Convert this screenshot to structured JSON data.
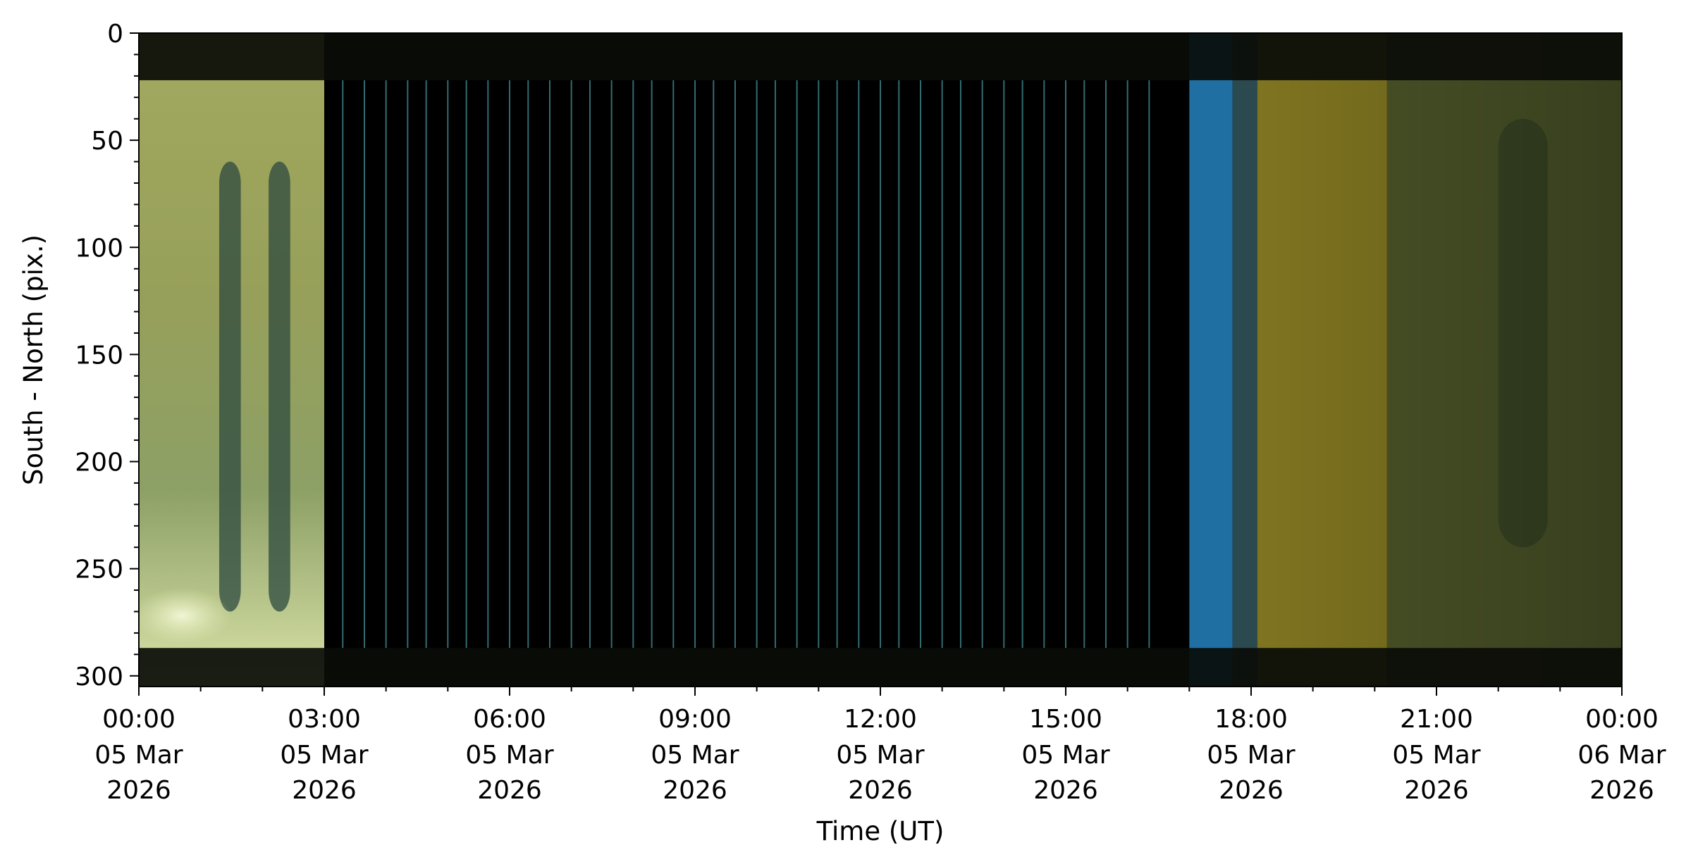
{
  "chart_data": {
    "type": "heatmap",
    "title": "",
    "xlabel": "Time (UT)",
    "ylabel": "South - North (pix.)",
    "y_inverted": true,
    "ylim": [
      305,
      0
    ],
    "y_major_ticks": [
      0,
      50,
      100,
      150,
      200,
      250,
      300
    ],
    "y_minor_step": 10,
    "x_range_hours": [
      0,
      24
    ],
    "x_minor_step_hours": 1,
    "x_ticks": [
      {
        "hours": 0,
        "time": "00:00",
        "date": "05 Mar",
        "year": "2026"
      },
      {
        "hours": 3,
        "time": "03:00",
        "date": "05 Mar",
        "year": "2026"
      },
      {
        "hours": 6,
        "time": "06:00",
        "date": "05 Mar",
        "year": "2026"
      },
      {
        "hours": 9,
        "time": "09:00",
        "date": "05 Mar",
        "year": "2026"
      },
      {
        "hours": 12,
        "time": "12:00",
        "date": "05 Mar",
        "year": "2026"
      },
      {
        "hours": 15,
        "time": "15:00",
        "date": "05 Mar",
        "year": "2026"
      },
      {
        "hours": 18,
        "time": "18:00",
        "date": "05 Mar",
        "year": "2026"
      },
      {
        "hours": 21,
        "time": "21:00",
        "date": "05 Mar",
        "year": "2026"
      },
      {
        "hours": 24,
        "time": "00:00",
        "date": "06 Mar",
        "year": "2026"
      }
    ],
    "segments": [
      {
        "start_hours": 0.0,
        "end_hours": 3.0,
        "color": "#a9b266"
      },
      {
        "start_hours": 3.0,
        "end_hours": 17.0,
        "color": "#000000"
      },
      {
        "start_hours": 17.0,
        "end_hours": 17.7,
        "color": "#1f6fa3"
      },
      {
        "start_hours": 17.7,
        "end_hours": 18.1,
        "color": "#2b4a50"
      },
      {
        "start_hours": 18.1,
        "end_hours": 20.2,
        "color": "#7f7420"
      },
      {
        "start_hours": 20.2,
        "end_hours": 24.0,
        "color": "#4b5428"
      }
    ],
    "dark_band_pix": [
      [
        0,
        22
      ],
      [
        287,
        305
      ]
    ],
    "line_hours": [
      3.3,
      3.65,
      4.0,
      4.35,
      4.65,
      5.0,
      5.3,
      5.65,
      6.0,
      6.3,
      6.65,
      7.0,
      7.3,
      7.65,
      8.0,
      8.3,
      8.65,
      9.0,
      9.3,
      9.65,
      10.0,
      10.3,
      10.65,
      11.0,
      11.3,
      11.65,
      12.0,
      12.3,
      12.65,
      13.0,
      13.3,
      13.65,
      14.0,
      14.3,
      14.65,
      15.0,
      15.3,
      15.65,
      16.0,
      16.35
    ],
    "line_color": "#3d7f86"
  }
}
